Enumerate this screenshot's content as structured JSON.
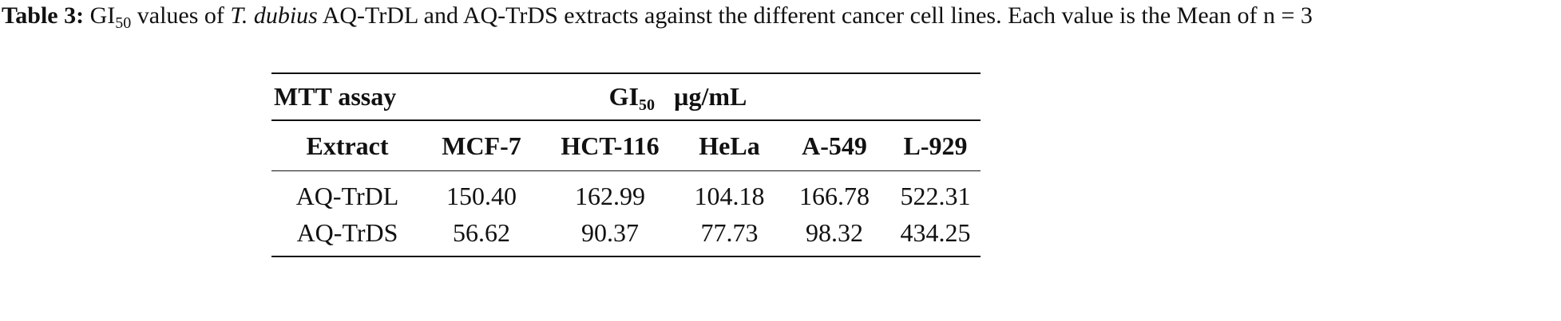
{
  "caption": {
    "label": "Table 3:",
    "t1": "GI",
    "sub": "50",
    "t2": " values of ",
    "italic": "T. dubius",
    "t3": " AQ-TrDL and AQ-TrDS extracts against the different cancer cell lines. Each value is the Mean of n = 3"
  },
  "table": {
    "group_header": {
      "left": "MTT assay",
      "gi": "GI",
      "sub": "50",
      "unit": "µg/mL"
    },
    "columns": [
      "Extract",
      "MCF-7",
      "HCT-116",
      "HeLa",
      "A-549",
      "L-929"
    ],
    "rows": [
      [
        "AQ-TrDL",
        "150.40",
        "162.99",
        "104.18",
        "166.78",
        "522.31"
      ],
      [
        "AQ-TrDS",
        "56.62",
        "90.37",
        "77.73",
        "98.32",
        "434.25"
      ]
    ]
  }
}
